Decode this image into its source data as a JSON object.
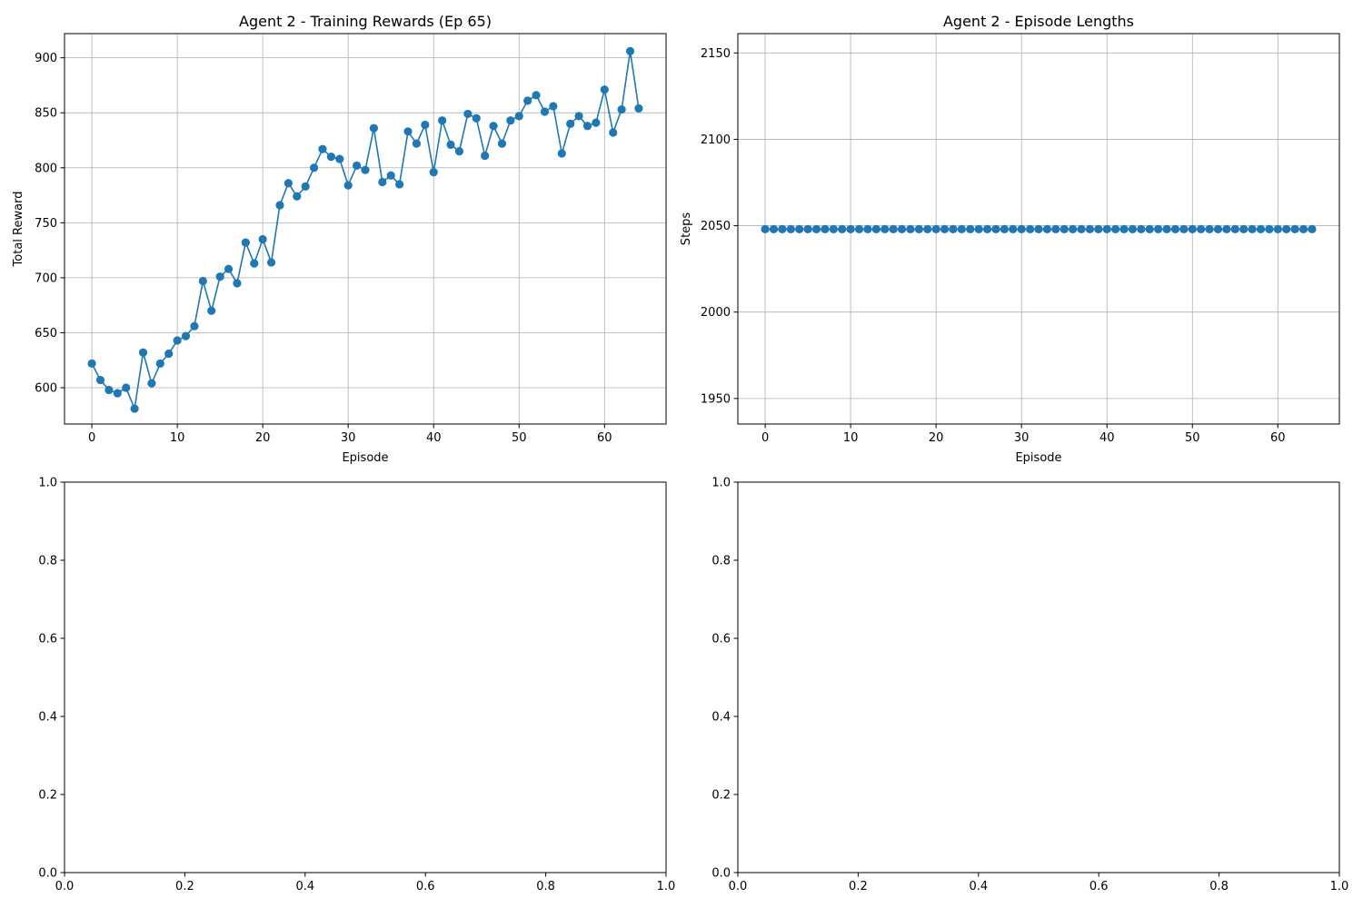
{
  "chart_data": [
    {
      "type": "line",
      "title": "Agent 2 - Training Rewards (Ep 65)",
      "xlabel": "Episode",
      "ylabel": "Total Reward",
      "xlim": [
        -3.2,
        67.2
      ],
      "ylim": [
        567,
        922
      ],
      "xticks": [
        0,
        10,
        20,
        30,
        40,
        50,
        60
      ],
      "yticks": [
        600,
        650,
        700,
        750,
        800,
        850,
        900
      ],
      "grid": true,
      "color": "#1f77b4",
      "markers": true,
      "series": [
        {
          "x": [
            0,
            1,
            2,
            3,
            4,
            5,
            6,
            7,
            8,
            9,
            10,
            11,
            12,
            13,
            14,
            15,
            16,
            17,
            18,
            19,
            20,
            21,
            22,
            23,
            24,
            25,
            26,
            27,
            28,
            29,
            30,
            31,
            32,
            33,
            34,
            35,
            36,
            37,
            38,
            39,
            40,
            41,
            42,
            43,
            44,
            45,
            46,
            47,
            48,
            49,
            50,
            51,
            52,
            53,
            54,
            55,
            56,
            57,
            58,
            59,
            60,
            61,
            62,
            63,
            64
          ],
          "values": [
            622,
            607,
            598,
            595,
            600,
            581,
            632,
            604,
            622,
            631,
            643,
            647,
            656,
            697,
            670,
            701,
            708,
            695,
            732,
            713,
            735,
            714,
            766,
            786,
            774,
            783,
            800,
            817,
            810,
            808,
            784,
            802,
            798,
            836,
            787,
            793,
            785,
            833,
            822,
            839,
            796,
            843,
            821,
            815,
            849,
            845,
            811,
            838,
            822,
            843,
            847,
            861,
            866,
            851,
            856,
            813,
            840,
            847,
            838,
            841,
            871,
            832,
            853,
            906,
            854
          ]
        }
      ]
    },
    {
      "type": "line",
      "title": "Agent 2 - Episode Lengths",
      "xlabel": "Episode",
      "ylabel": "Steps",
      "xlim": [
        -3.2,
        67.2
      ],
      "ylim": [
        1935.2,
        2161.2
      ],
      "xticks": [
        0,
        10,
        20,
        30,
        40,
        50,
        60
      ],
      "yticks": [
        1950,
        2000,
        2050,
        2100,
        2150
      ],
      "grid": true,
      "color": "#1f77b4",
      "markers": true,
      "series": [
        {
          "x": [
            0,
            1,
            2,
            3,
            4,
            5,
            6,
            7,
            8,
            9,
            10,
            11,
            12,
            13,
            14,
            15,
            16,
            17,
            18,
            19,
            20,
            21,
            22,
            23,
            24,
            25,
            26,
            27,
            28,
            29,
            30,
            31,
            32,
            33,
            34,
            35,
            36,
            37,
            38,
            39,
            40,
            41,
            42,
            43,
            44,
            45,
            46,
            47,
            48,
            49,
            50,
            51,
            52,
            53,
            54,
            55,
            56,
            57,
            58,
            59,
            60,
            61,
            62,
            63,
            64
          ],
          "values": [
            2048,
            2048,
            2048,
            2048,
            2048,
            2048,
            2048,
            2048,
            2048,
            2048,
            2048,
            2048,
            2048,
            2048,
            2048,
            2048,
            2048,
            2048,
            2048,
            2048,
            2048,
            2048,
            2048,
            2048,
            2048,
            2048,
            2048,
            2048,
            2048,
            2048,
            2048,
            2048,
            2048,
            2048,
            2048,
            2048,
            2048,
            2048,
            2048,
            2048,
            2048,
            2048,
            2048,
            2048,
            2048,
            2048,
            2048,
            2048,
            2048,
            2048,
            2048,
            2048,
            2048,
            2048,
            2048,
            2048,
            2048,
            2048,
            2048,
            2048,
            2048,
            2048,
            2048,
            2048,
            2048
          ]
        }
      ]
    },
    {
      "type": "line",
      "title": "",
      "xlabel": "",
      "ylabel": "",
      "xlim": [
        0,
        1
      ],
      "ylim": [
        0,
        1
      ],
      "xticks": [
        0.0,
        0.2,
        0.4,
        0.6,
        0.8,
        1.0
      ],
      "yticks": [
        0.0,
        0.2,
        0.4,
        0.6,
        0.8,
        1.0
      ],
      "grid": false,
      "series": []
    },
    {
      "type": "line",
      "title": "",
      "xlabel": "",
      "ylabel": "",
      "xlim": [
        0,
        1
      ],
      "ylim": [
        0,
        1
      ],
      "xticks": [
        0.0,
        0.2,
        0.4,
        0.6,
        0.8,
        1.0
      ],
      "yticks": [
        0.0,
        0.2,
        0.4,
        0.6,
        0.8,
        1.0
      ],
      "grid": false,
      "series": []
    }
  ]
}
